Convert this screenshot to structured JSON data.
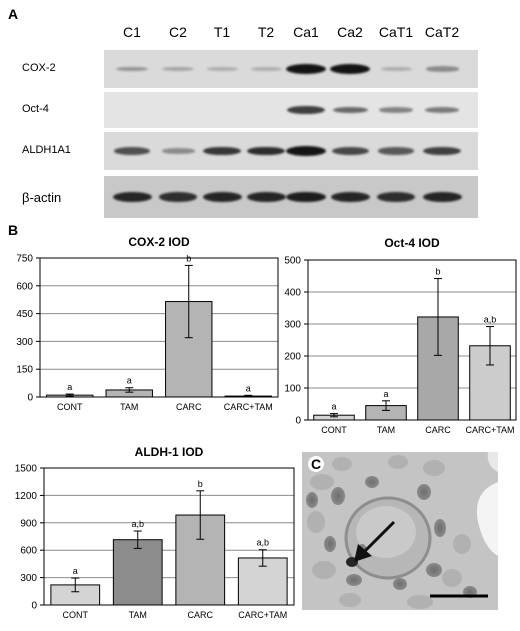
{
  "panels": {
    "a": "A",
    "b": "B",
    "c": "C"
  },
  "blot": {
    "lanes": [
      "C1",
      "C2",
      "T1",
      "T2",
      "Ca1",
      "Ca2",
      "CaT1",
      "CaT2"
    ],
    "rows": [
      {
        "label": "COX-2",
        "intensity": [
          0.25,
          0.15,
          0.1,
          0.1,
          1.0,
          1.0,
          0.1,
          0.3
        ]
      },
      {
        "label": "Oct-4",
        "intensity": [
          0.0,
          0.0,
          0.0,
          0.0,
          0.75,
          0.5,
          0.35,
          0.4
        ]
      },
      {
        "label": "ALDH1A1",
        "intensity": [
          0.65,
          0.3,
          0.8,
          0.85,
          1.0,
          0.7,
          0.6,
          0.75
        ]
      },
      {
        "label": "β-actin",
        "intensity": [
          0.9,
          0.85,
          0.9,
          0.9,
          0.95,
          0.9,
          0.85,
          0.9
        ]
      }
    ]
  },
  "chart_data": [
    {
      "type": "bar",
      "title": "COX-2 IOD",
      "categories": [
        "CONT",
        "TAM",
        "CARC",
        "CARC+TAM"
      ],
      "values": [
        10,
        38,
        515,
        5
      ],
      "error": [
        6,
        12,
        195,
        4
      ],
      "sig_labels": [
        "a",
        "a",
        "b",
        "a"
      ],
      "ylim": [
        0,
        750
      ],
      "yticks": [
        0,
        150,
        300,
        450,
        600,
        750
      ],
      "colors": [
        "#d4d4d4",
        "#b4b4b4",
        "#b4b4b4",
        "#d4d4d4"
      ],
      "grid": true
    },
    {
      "type": "bar",
      "title": "Oct-4 IOD",
      "categories": [
        "CONT",
        "TAM",
        "CARC",
        "CARC+TAM"
      ],
      "values": [
        15,
        45,
        322,
        232
      ],
      "error": [
        5,
        15,
        120,
        60
      ],
      "sig_labels": [
        "a",
        "a",
        "b",
        "a,b"
      ],
      "ylim": [
        0,
        500
      ],
      "yticks": [
        0,
        100,
        200,
        300,
        400,
        500
      ],
      "colors": [
        "#d4d4d4",
        "#b4b4b4",
        "#a8a8a8",
        "#cccccc"
      ],
      "grid": true
    },
    {
      "type": "bar",
      "title": "ALDH-1 IOD",
      "categories": [
        "CONT",
        "TAM",
        "CARC",
        "CARC+TAM"
      ],
      "values": [
        220,
        715,
        985,
        515
      ],
      "error": [
        75,
        95,
        265,
        90
      ],
      "sig_labels": [
        "a",
        "a,b",
        "b",
        "a,b"
      ],
      "ylim": [
        0,
        1500
      ],
      "yticks": [
        0,
        300,
        600,
        900,
        1200,
        1500
      ],
      "colors": [
        "#d4d4d4",
        "#8c8c8c",
        "#b4b4b4",
        "#d4d4d4"
      ],
      "grid": true
    }
  ]
}
